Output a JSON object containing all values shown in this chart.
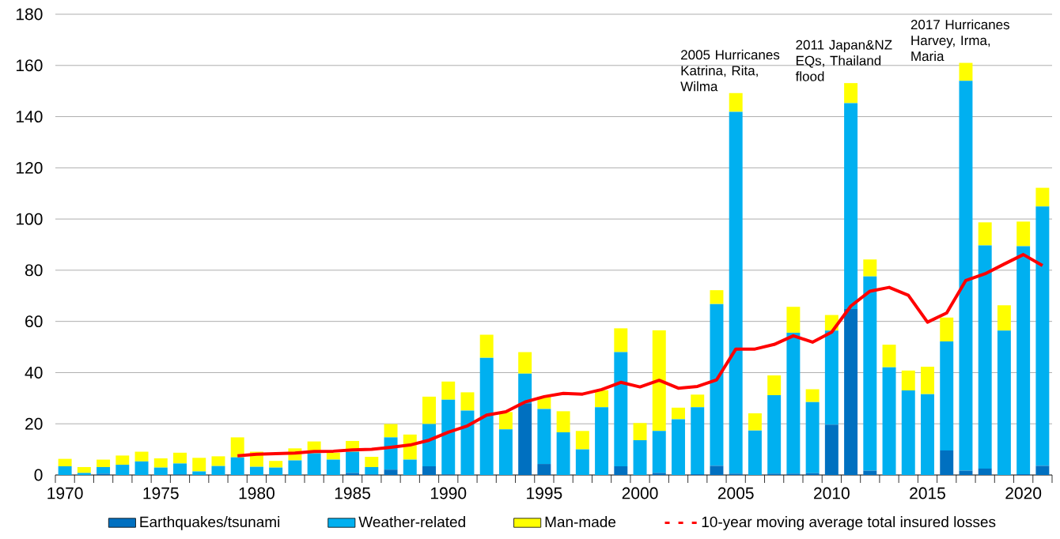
{
  "chart_data": {
    "type": "bar",
    "stacked": true,
    "grid": "y",
    "legend": "bottom",
    "x": [
      1970,
      1971,
      1972,
      1973,
      1974,
      1975,
      1976,
      1977,
      1978,
      1979,
      1980,
      1981,
      1982,
      1983,
      1984,
      1985,
      1986,
      1987,
      1988,
      1989,
      1990,
      1991,
      1992,
      1993,
      1994,
      1995,
      1996,
      1997,
      1998,
      1999,
      2000,
      2001,
      2002,
      2003,
      2004,
      2005,
      2006,
      2007,
      2008,
      2009,
      2010,
      2011,
      2012,
      2013,
      2014,
      2015,
      2016,
      2017,
      2018,
      2019,
      2020,
      2021
    ],
    "xlim": [
      1969.5,
      2021.5
    ],
    "xticks": [
      1970,
      1975,
      1980,
      1985,
      1990,
      1995,
      2000,
      2005,
      2010,
      2015,
      2020
    ],
    "ylim": [
      0,
      180
    ],
    "yticks": [
      0,
      20,
      40,
      60,
      80,
      100,
      120,
      140,
      160,
      180
    ],
    "annotations": [
      {
        "text": "2005 Hurricanes Katrina, Rita, Wilma",
        "x": 2005,
        "y": 149.2
      },
      {
        "text": "2011 Japan&NZ EQs, Thailand flood",
        "x": 2011,
        "y": 153.1
      },
      {
        "text": "2017 Hurricanes Harvey, Irma, Maria",
        "x": 2017,
        "y": 161.0
      }
    ],
    "series": [
      {
        "name": "Earthquakes/tsunami",
        "color": "#0070c0",
        "values": [
          0,
          0,
          0.5,
          0,
          0,
          0,
          0.2,
          0,
          0,
          0,
          0,
          0,
          0,
          0,
          0,
          0.8,
          0.2,
          2.1,
          0,
          3.4,
          0.2,
          0,
          0,
          0,
          28.0,
          4.3,
          0,
          0,
          0,
          3.4,
          0,
          0.8,
          0,
          0.3,
          3.6,
          0.5,
          0,
          0.5,
          0.5,
          0.7,
          19.7,
          64.8,
          1.7,
          0,
          0,
          0,
          9.6,
          1.7,
          2.5,
          0,
          0.3,
          3.6
        ]
      },
      {
        "name": "Weather-related",
        "color": "#00b0f0",
        "values": [
          3.4,
          0.8,
          2.6,
          4.0,
          5.3,
          2.9,
          4.3,
          1.4,
          3.5,
          6.9,
          3.2,
          2.9,
          5.7,
          8.5,
          6.0,
          8.3,
          2.9,
          12.6,
          6.0,
          16.5,
          29.2,
          25.2,
          45.8,
          17.8,
          11.6,
          21.5,
          16.7,
          10.0,
          26.5,
          44.6,
          13.6,
          16.4,
          21.8,
          26.2,
          63.2,
          141.4,
          17.4,
          30.7,
          55.1,
          27.8,
          36.7,
          80.5,
          75.9,
          42.1,
          33.0,
          31.6,
          42.6,
          152.3,
          87.2,
          56.4,
          89.1,
          101.3
        ]
      },
      {
        "name": "Man-made",
        "color": "#ffff00",
        "values": [
          2.9,
          2.3,
          2.9,
          3.6,
          3.8,
          3.6,
          4.2,
          5.3,
          3.8,
          7.8,
          5.9,
          2.6,
          4.7,
          4.6,
          2.7,
          4.2,
          4.0,
          5.2,
          9.8,
          10.7,
          7.1,
          7.1,
          9.0,
          6.8,
          8.4,
          4.8,
          8.2,
          7.2,
          6.6,
          9.3,
          6.7,
          39.3,
          4.5,
          4.9,
          5.4,
          7.3,
          6.7,
          7.7,
          10.1,
          5.0,
          6.1,
          7.8,
          6.6,
          8.8,
          7.8,
          10.7,
          9.3,
          7.0,
          9.0,
          9.9,
          9.6,
          7.3
        ]
      },
      {
        "name": "10-year moving average total insured losses",
        "type": "line",
        "color": "#ff0000",
        "x": [
          1979,
          1980,
          1981,
          1982,
          1983,
          1984,
          1985,
          1986,
          1987,
          1988,
          1989,
          1990,
          1991,
          1992,
          1993,
          1994,
          1995,
          1996,
          1997,
          1998,
          1999,
          2000,
          2001,
          2002,
          2003,
          2004,
          2005,
          2006,
          2007,
          2008,
          2009,
          2010,
          2011,
          2012,
          2013,
          2014,
          2015,
          2016,
          2017,
          2018,
          2019,
          2020,
          2021
        ],
        "values": [
          7.5,
          8.1,
          8.3,
          8.6,
          9.2,
          9.3,
          9.8,
          10.0,
          10.8,
          11.7,
          13.6,
          16.7,
          19.2,
          23.4,
          24.7,
          28.5,
          30.6,
          31.9,
          31.6,
          33.4,
          36.2,
          34.4,
          37.0,
          33.9,
          34.6,
          37.2,
          49.2,
          49.2,
          51.0,
          54.4,
          51.9,
          55.8,
          66.0,
          71.8,
          73.3,
          70.2,
          59.7,
          63.3,
          76.0,
          78.6,
          82.4,
          86.1,
          81.8
        ]
      }
    ]
  }
}
